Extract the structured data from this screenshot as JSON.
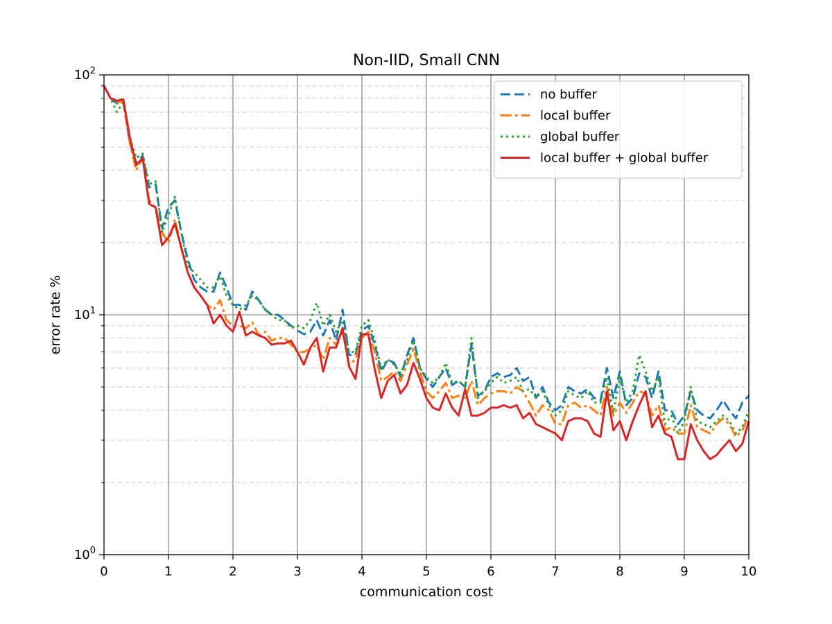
{
  "chart_data": {
    "type": "line",
    "title": "Non-IID, Small CNN",
    "xlabel": "communication cost",
    "ylabel": "error rate %",
    "xlim": [
      0,
      10
    ],
    "ylim": [
      1,
      100
    ],
    "yscale": "log",
    "grid": "on",
    "legend_position": "top-right",
    "x_ticks": [
      "0",
      "1",
      "2",
      "3",
      "4",
      "5",
      "6",
      "7",
      "8",
      "9",
      "10"
    ],
    "y_ticks": [
      {
        "base": "10",
        "exp": "0"
      },
      {
        "base": "10",
        "exp": "1"
      },
      {
        "base": "10",
        "exp": "2"
      }
    ],
    "x": [
      0,
      0.1,
      0.2,
      0.3,
      0.4,
      0.5,
      0.6,
      0.7,
      0.8,
      0.9,
      1.0,
      1.1,
      1.2,
      1.3,
      1.4,
      1.5,
      1.6,
      1.7,
      1.8,
      1.9,
      2.0,
      2.1,
      2.2,
      2.3,
      2.4,
      2.5,
      2.6,
      2.7,
      2.8,
      2.9,
      3.0,
      3.1,
      3.2,
      3.3,
      3.4,
      3.5,
      3.6,
      3.7,
      3.8,
      3.9,
      4.0,
      4.1,
      4.2,
      4.3,
      4.4,
      4.5,
      4.6,
      4.7,
      4.8,
      4.9,
      5.0,
      5.1,
      5.2,
      5.3,
      5.4,
      5.5,
      5.6,
      5.7,
      5.8,
      5.9,
      6.0,
      6.1,
      6.2,
      6.3,
      6.4,
      6.5,
      6.6,
      6.7,
      6.8,
      6.9,
      7.0,
      7.1,
      7.2,
      7.3,
      7.4,
      7.5,
      7.6,
      7.7,
      7.8,
      7.9,
      8.0,
      8.1,
      8.2,
      8.3,
      8.4,
      8.5,
      8.6,
      8.7,
      8.8,
      8.9,
      9.0,
      9.1,
      9.2,
      9.3,
      9.4,
      9.5,
      9.6,
      9.7,
      9.8,
      9.9,
      10.0
    ],
    "series": [
      {
        "name": "no buffer",
        "color": "#1f77b4",
        "dash": "dashed",
        "values": [
          90,
          80,
          76,
          77,
          52,
          43,
          46,
          34,
          35,
          23,
          28,
          30,
          22,
          17,
          14,
          13,
          12.5,
          12.5,
          15,
          13,
          11,
          11,
          10.5,
          12.5,
          11.5,
          10.5,
          10,
          10,
          9.5,
          9,
          8.6,
          8.3,
          8.5,
          9.5,
          8.2,
          9.5,
          7.8,
          10.5,
          6.8,
          6.8,
          8.6,
          9,
          7.5,
          5.8,
          6.5,
          6.3,
          5.5,
          6.8,
          8,
          6,
          5.4,
          5,
          5.5,
          6,
          5.1,
          5.3,
          5,
          7.5,
          4.6,
          4.8,
          5.5,
          5.7,
          5.5,
          5.6,
          6,
          5.3,
          5.5,
          4.5,
          5,
          4.3,
          4,
          4.2,
          5,
          4.8,
          4.7,
          4.9,
          4.5,
          4.4,
          6,
          4.5,
          5.8,
          4.2,
          4.5,
          5.7,
          5.5,
          4.5,
          5.8,
          4,
          4,
          3.5,
          3.8,
          4.8,
          4,
          3.8,
          3.7,
          4,
          4.4,
          4,
          3.7,
          4.3,
          4.6
        ]
      },
      {
        "name": "local buffer",
        "color": "#ff7f0e",
        "dash": "dashdot",
        "values": [
          90,
          80,
          77,
          77,
          52,
          40,
          45,
          30,
          28,
          22,
          20,
          25,
          19,
          15,
          13,
          12,
          11,
          10.5,
          11.5,
          9.5,
          9,
          9,
          8.8,
          9.3,
          8.2,
          8.5,
          7.8,
          8,
          8,
          7.5,
          7,
          7,
          7.2,
          7.5,
          6.5,
          8,
          7.5,
          8.5,
          6.2,
          6.5,
          8,
          8.5,
          7,
          5.3,
          5.5,
          5.8,
          5.3,
          6.2,
          7.2,
          5.8,
          4.8,
          4.5,
          4.8,
          5.2,
          4.5,
          4.6,
          4.5,
          5.3,
          4.2,
          4.5,
          4.7,
          4.8,
          4.8,
          4.7,
          5,
          4.8,
          4.3,
          3.8,
          4.2,
          4,
          3.5,
          3.5,
          4.2,
          4.3,
          4.1,
          4.2,
          4,
          3.8,
          5,
          3.8,
          4.3,
          3.9,
          4.3,
          4.8,
          4.7,
          3.8,
          4.2,
          3.3,
          3.4,
          3.2,
          3.2,
          4.2,
          3.4,
          3.3,
          3.2,
          3.5,
          3.7,
          3.5,
          3.1,
          3.3,
          3.8
        ]
      },
      {
        "name": "global buffer",
        "color": "#2ca02c",
        "dash": "dotted",
        "values": [
          90,
          80,
          70,
          77,
          55,
          45,
          47,
          35,
          36,
          22,
          26,
          31,
          22,
          16,
          15,
          14,
          13,
          13,
          14.5,
          12,
          11,
          10.5,
          11,
          12,
          11.5,
          10.5,
          10,
          9.5,
          9.5,
          8.8,
          9,
          8.8,
          9.5,
          11.2,
          9,
          10,
          8.5,
          9.5,
          7,
          7,
          9,
          9.5,
          7.8,
          6,
          6.5,
          6.2,
          5.7,
          6.5,
          7.8,
          6,
          5.5,
          5.2,
          5.5,
          6.3,
          5.2,
          5.3,
          5,
          8,
          4.5,
          4.8,
          5.2,
          5.5,
          5.2,
          5.3,
          5.5,
          4.8,
          4.9,
          4.5,
          4.8,
          4.2,
          3.8,
          4,
          4.8,
          4.6,
          4.5,
          4.8,
          4.3,
          4.3,
          5.5,
          3.9,
          5.5,
          4.3,
          4.8,
          6.8,
          5.8,
          4.8,
          5.5,
          3.5,
          3.8,
          3.2,
          3.6,
          5,
          3.6,
          3.5,
          3.4,
          3.6,
          3.8,
          3.6,
          3.2,
          3.4,
          4
        ]
      },
      {
        "name": "local buffer + global buffer",
        "color": "#d62728",
        "dash": "solid",
        "values": [
          90,
          80,
          78,
          79,
          55,
          42,
          45,
          29,
          28,
          19.5,
          21,
          24,
          19,
          15,
          13,
          12,
          11,
          9.2,
          10,
          9,
          8.5,
          10.3,
          8.2,
          8.5,
          8.2,
          8,
          7.5,
          7.6,
          7.6,
          7.8,
          7,
          6.2,
          7.3,
          8,
          5.8,
          7.3,
          7.3,
          8.8,
          6.1,
          5.4,
          8.3,
          8.3,
          5.9,
          4.5,
          5.3,
          5.6,
          4.7,
          5.1,
          6.3,
          5.4,
          4.5,
          4.1,
          4,
          4.7,
          4.1,
          3.8,
          4.9,
          3.8,
          3.8,
          3.9,
          4.1,
          4.1,
          4.2,
          4.1,
          4.2,
          3.7,
          3.9,
          3.5,
          3.4,
          3.3,
          3.2,
          3,
          3.6,
          3.7,
          3.7,
          3.6,
          3.2,
          3.1,
          4.8,
          3.3,
          3.6,
          3,
          3.6,
          4.2,
          4.8,
          3.4,
          3.8,
          3.2,
          3.1,
          2.5,
          2.5,
          3.5,
          3,
          2.7,
          2.5,
          2.6,
          2.8,
          3,
          2.7,
          2.9,
          3.6
        ]
      }
    ]
  }
}
